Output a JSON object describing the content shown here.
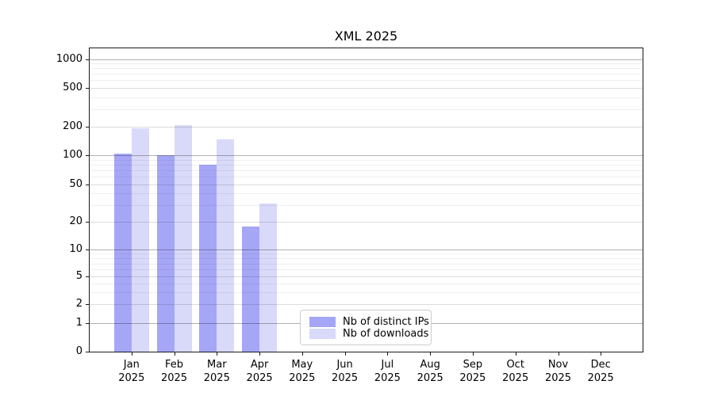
{
  "chart_data": {
    "type": "bar",
    "title": "XML 2025",
    "categories": [
      "Jan",
      "Feb",
      "Mar",
      "Apr",
      "May",
      "Jun",
      "Jul",
      "Aug",
      "Sep",
      "Oct",
      "Nov",
      "Dec"
    ],
    "category_year": "2025",
    "series": [
      {
        "name": "Nb of distinct IPs",
        "color": "#a6a6f6",
        "values": [
          104,
          100,
          80,
          18,
          null,
          null,
          null,
          null,
          null,
          null,
          null,
          null
        ]
      },
      {
        "name": "Nb of downloads",
        "color": "#d9d9f9",
        "values": [
          193,
          205,
          148,
          31,
          null,
          null,
          null,
          null,
          null,
          null,
          null,
          null
        ]
      }
    ],
    "yticks": [
      0,
      1,
      2,
      5,
      10,
      20,
      50,
      100,
      200,
      500,
      1000
    ],
    "minor_yticks": [
      3,
      4,
      6,
      7,
      8,
      9,
      30,
      40,
      60,
      70,
      80,
      90,
      300,
      400,
      600,
      700,
      800,
      900
    ],
    "yscale": "log-with-zero-baseline",
    "ylim": [
      0,
      1300
    ],
    "xlabel": "",
    "ylabel": "",
    "grid": "horizontal",
    "legend_position": "inside-bottom-center-left",
    "colors": {
      "major_grid": "#b0b0b0",
      "mid_grid": "#dcdcdc",
      "minor_grid": "#efefef",
      "spine": "#1a1a1a",
      "text": "#000000",
      "background": "#ffffff"
    }
  }
}
